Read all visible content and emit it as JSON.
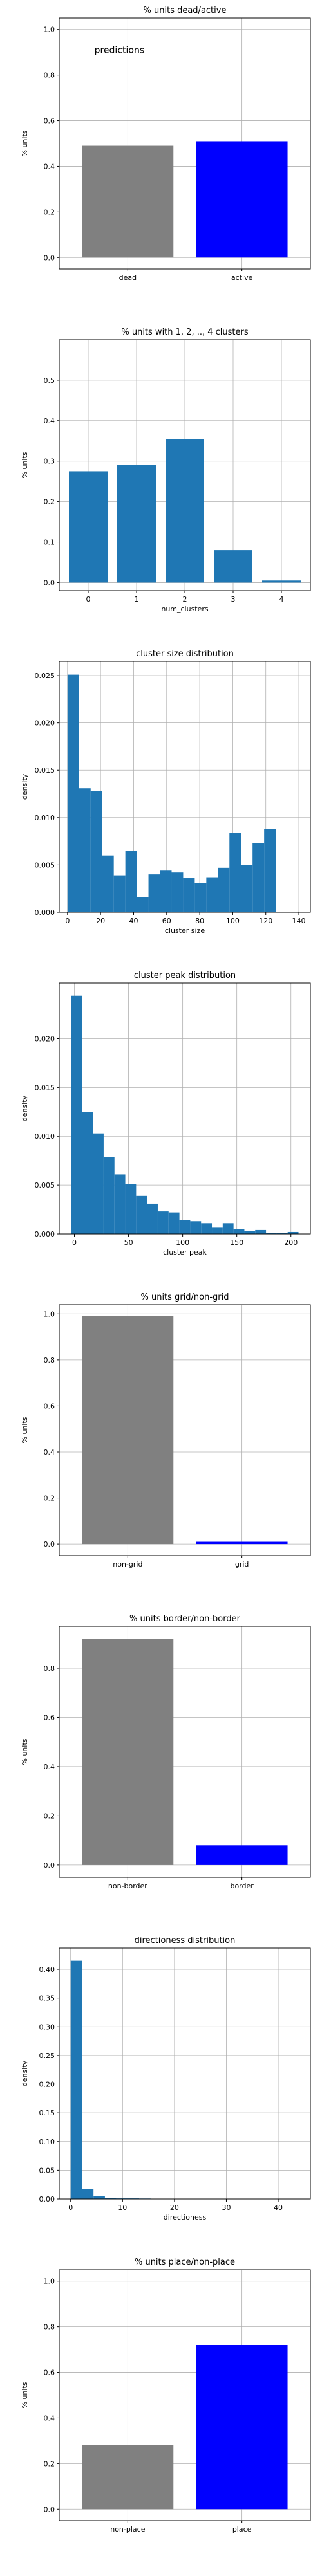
{
  "chart_data": [
    {
      "type": "bar",
      "title": "% units dead/active",
      "annotation": "predictions",
      "xlabel": "",
      "ylabel": "% units",
      "categories": [
        "dead",
        "active"
      ],
      "values": [
        0.49,
        0.51
      ],
      "colors": [
        "#808080",
        "#0000ff"
      ],
      "ylim": [
        -0.05,
        1.05
      ],
      "yticks": [
        0.0,
        0.2,
        0.4,
        0.6,
        0.8,
        1.0
      ],
      "ytick_labels": [
        "0.0",
        "0.2",
        "0.4",
        "0.6",
        "0.8",
        "1.0"
      ],
      "grid": true
    },
    {
      "type": "bar",
      "title": "% units with 1, 2, .., 4 clusters",
      "xlabel": "num_clusters",
      "ylabel": "% units",
      "categories": [
        "0",
        "1",
        "2",
        "3",
        "4"
      ],
      "values": [
        0.275,
        0.29,
        0.355,
        0.08,
        0.005
      ],
      "colors": [
        "#1f77b4"
      ],
      "ylim": [
        -0.02,
        0.6
      ],
      "yticks": [
        0.0,
        0.1,
        0.2,
        0.3,
        0.4,
        0.5
      ],
      "ytick_labels": [
        "0.0",
        "0.1",
        "0.2",
        "0.3",
        "0.4",
        "0.5"
      ],
      "grid": true
    },
    {
      "type": "bar",
      "subtype": "histogram",
      "title": "cluster size distribution",
      "xlabel": "cluster size",
      "ylabel": "density",
      "bin_start": 0,
      "bin_width": 7,
      "values": [
        0.0251,
        0.0131,
        0.0128,
        0.006,
        0.0039,
        0.0065,
        0.0016,
        0.004,
        0.0044,
        0.0042,
        0.0036,
        0.0031,
        0.0037,
        0.0047,
        0.0084,
        0.005,
        0.0073,
        0.0088
      ],
      "colors": [
        "#1f77b4"
      ],
      "xlim": [
        -5,
        147
      ],
      "xticks": [
        0,
        20,
        40,
        60,
        80,
        100,
        120,
        140
      ],
      "xtick_labels": [
        "0",
        "20",
        "40",
        "60",
        "80",
        "100",
        "120",
        "140"
      ],
      "ylim": [
        0,
        0.0265
      ],
      "yticks": [
        0.0,
        0.005,
        0.01,
        0.015,
        0.02,
        0.025
      ],
      "ytick_labels": [
        "0.000",
        "0.005",
        "0.010",
        "0.015",
        "0.020",
        "0.025"
      ],
      "grid": true
    },
    {
      "type": "bar",
      "subtype": "histogram",
      "title": "cluster peak distribution",
      "xlabel": "cluster peak",
      "ylabel": "density",
      "bin_start": -3,
      "bin_width": 10,
      "values": [
        0.0244,
        0.0125,
        0.0103,
        0.0079,
        0.0061,
        0.0051,
        0.0039,
        0.0031,
        0.0023,
        0.0022,
        0.0014,
        0.0013,
        0.0011,
        0.0007,
        0.0011,
        0.0005,
        0.0003,
        0.0004,
        0.0001,
        0.0001,
        0.0002
      ],
      "colors": [
        "#1f77b4"
      ],
      "xlim": [
        -14,
        218
      ],
      "xticks": [
        0,
        50,
        100,
        150,
        200
      ],
      "xtick_labels": [
        "0",
        "50",
        "100",
        "150",
        "200"
      ],
      "ylim": [
        0,
        0.0257
      ],
      "yticks": [
        0.0,
        0.005,
        0.01,
        0.015,
        0.02
      ],
      "ytick_labels": [
        "0.000",
        "0.005",
        "0.010",
        "0.015",
        "0.020"
      ],
      "grid": true
    },
    {
      "type": "bar",
      "title": "% units grid/non-grid",
      "xlabel": "",
      "ylabel": "% units",
      "categories": [
        "non-grid",
        "grid"
      ],
      "values": [
        0.99,
        0.01
      ],
      "colors": [
        "#808080",
        "#0000ff"
      ],
      "ylim": [
        -0.05,
        1.04
      ],
      "yticks": [
        0.0,
        0.2,
        0.4,
        0.6,
        0.8,
        1.0
      ],
      "ytick_labels": [
        "0.0",
        "0.2",
        "0.4",
        "0.6",
        "0.8",
        "1.0"
      ],
      "grid": true
    },
    {
      "type": "bar",
      "title": "% units border/non-border",
      "xlabel": "",
      "ylabel": "% units",
      "categories": [
        "non-border",
        "border"
      ],
      "values": [
        0.92,
        0.08
      ],
      "colors": [
        "#808080",
        "#0000ff"
      ],
      "ylim": [
        -0.05,
        0.97
      ],
      "yticks": [
        0.0,
        0.2,
        0.4,
        0.6,
        0.8
      ],
      "ytick_labels": [
        "0.0",
        "0.2",
        "0.4",
        "0.6",
        "0.8"
      ],
      "grid": true
    },
    {
      "type": "bar",
      "subtype": "histogram",
      "title": "directioness distribution",
      "xlabel": "directioness",
      "ylabel": "density",
      "bin_start": 0,
      "bin_width": 2.2,
      "values": [
        0.415,
        0.017,
        0.005,
        0.002,
        0.001,
        0.001,
        0.0008,
        0.0005,
        0.0005,
        0.0004,
        0.0004,
        0.0003,
        0.0003,
        0.0002,
        0.0002,
        0.0002,
        0.0002,
        0.0002,
        0.0002,
        0.0002
      ],
      "colors": [
        "#1f77b4"
      ],
      "xlim": [
        -2.2,
        46.2
      ],
      "xticks": [
        0,
        10,
        20,
        30,
        40
      ],
      "xtick_labels": [
        "0",
        "10",
        "20",
        "30",
        "40"
      ],
      "ylim": [
        0,
        0.437
      ],
      "yticks": [
        0.0,
        0.05,
        0.1,
        0.15,
        0.2,
        0.25,
        0.3,
        0.35,
        0.4
      ],
      "ytick_labels": [
        "0.00",
        "0.05",
        "0.10",
        "0.15",
        "0.20",
        "0.25",
        "0.30",
        "0.35",
        "0.40"
      ],
      "grid": true
    },
    {
      "type": "bar",
      "title": "% units place/non-place",
      "xlabel": "",
      "ylabel": "% units",
      "categories": [
        "non-place",
        "place"
      ],
      "values": [
        0.28,
        0.72
      ],
      "colors": [
        "#808080",
        "#0000ff"
      ],
      "ylim": [
        -0.05,
        1.05
      ],
      "yticks": [
        0.0,
        0.2,
        0.4,
        0.6,
        0.8,
        1.0
      ],
      "ytick_labels": [
        "0.0",
        "0.2",
        "0.4",
        "0.6",
        "0.8",
        "1.0"
      ],
      "grid": true
    }
  ]
}
